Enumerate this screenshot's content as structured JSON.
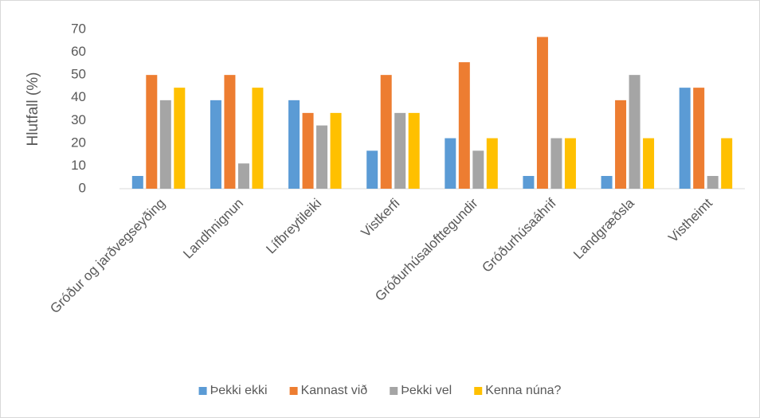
{
  "chart_data": {
    "type": "bar",
    "y_label": "Hlutfall (%)",
    "categories": [
      "Gróður og jarðvegseyðing",
      "Landhnignun",
      "Lífbreytileiki",
      "Vistkerfi",
      "Gróðurhúsalofttegundir",
      "Gróðurhúsaáhrif",
      "Landgræðsla",
      "Vistheimt"
    ],
    "series": [
      {
        "name": "Þekki ekki",
        "color": "#5b9bd5",
        "values": [
          5.6,
          38.9,
          38.9,
          16.7,
          22.2,
          5.6,
          5.6,
          44.4
        ]
      },
      {
        "name": "Kannast við",
        "color": "#ed7d31",
        "values": [
          50,
          50,
          33.3,
          50,
          55.6,
          66.7,
          38.9,
          44.4
        ]
      },
      {
        "name": "Þekki vel",
        "color": "#a5a5a5",
        "values": [
          38.9,
          11.1,
          27.8,
          33.3,
          16.7,
          22.2,
          50,
          5.6
        ]
      },
      {
        "name": "Kenna núna?",
        "color": "#ffc000",
        "values": [
          44.4,
          44.4,
          33.3,
          33.3,
          22.2,
          22.2,
          22.2,
          22.2
        ]
      }
    ],
    "ylim": [
      0,
      70
    ],
    "yticks": [
      0,
      10,
      20,
      30,
      40,
      50,
      60,
      70
    ],
    "grid": false,
    "legend": "bottom"
  }
}
